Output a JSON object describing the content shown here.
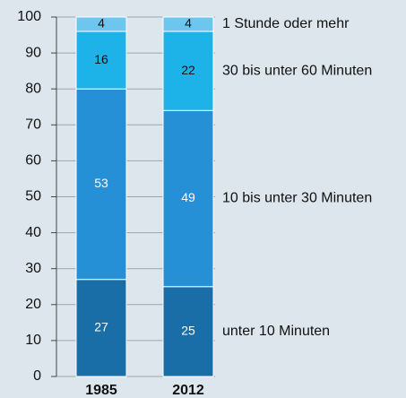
{
  "chart_data": {
    "type": "stacked_bar",
    "categories": [
      "1985",
      "2012"
    ],
    "series": [
      {
        "name": "unter 10 Minuten",
        "color": "#1a6ea8",
        "label_color": "#ffffff",
        "values": [
          27,
          25
        ]
      },
      {
        "name": "10 bis unter 30 Minuten",
        "color": "#2590d6",
        "label_color": "#ffffff",
        "values": [
          53,
          49
        ]
      },
      {
        "name": "30 bis unter 60 Minuten",
        "color": "#1db2e8",
        "label_color": "#111111",
        "values": [
          16,
          22
        ]
      },
      {
        "name": "1 Stunde oder mehr",
        "color": "#6cc6ee",
        "label_color": "#111111",
        "values": [
          4,
          4
        ]
      }
    ],
    "ylim": [
      0,
      100
    ],
    "yticks": [
      0,
      10,
      20,
      30,
      40,
      50,
      60,
      70,
      80,
      90,
      100
    ],
    "grid": true
  }
}
